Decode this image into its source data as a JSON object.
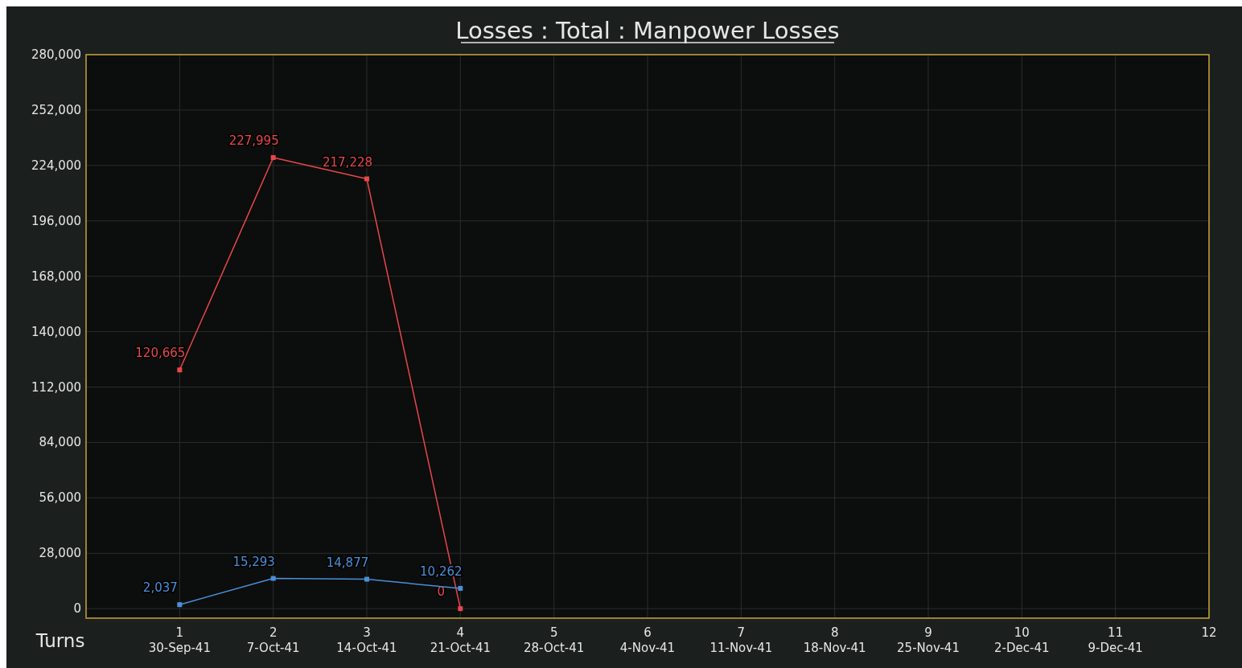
{
  "chart_data": {
    "type": "line",
    "title": "Losses : Total : Manpower Losses",
    "xlabel": "Turns",
    "x": [
      1,
      2,
      3,
      4
    ],
    "series": [
      {
        "color": "#e8474a",
        "values": [
          120665,
          227995,
          217228,
          0
        ],
        "value_labels": [
          "120,665",
          "227,995",
          "217,228",
          "0"
        ]
      },
      {
        "color": "#4a8fd8",
        "values": [
          2037,
          15293,
          14877,
          10262
        ],
        "value_labels": [
          "2,037",
          "15,293",
          "14,877",
          "10,262"
        ]
      }
    ],
    "xlim": [
      0,
      12
    ],
    "xticks": [
      1,
      2,
      3,
      4,
      5,
      6,
      7,
      8,
      9,
      10,
      11,
      12
    ],
    "x2lim": [
      "1941-09-23",
      "1941-12-16"
    ],
    "x2ticks": [
      {
        "value": "1941-09-30",
        "label": "30-Sep-41"
      },
      {
        "value": "1941-10-07",
        "label": "7-Oct-41"
      },
      {
        "value": "1941-10-14",
        "label": "14-Oct-41"
      },
      {
        "value": "1941-10-21",
        "label": "21-Oct-41"
      },
      {
        "value": "1941-10-28",
        "label": "28-Oct-41"
      },
      {
        "value": "1941-11-04",
        "label": "4-Nov-41"
      },
      {
        "value": "1941-11-11",
        "label": "11-Nov-41"
      },
      {
        "value": "1941-11-18",
        "label": "18-Nov-41"
      },
      {
        "value": "1941-11-25",
        "label": "25-Nov-41"
      },
      {
        "value": "1941-12-02",
        "label": "2-Dec-41"
      },
      {
        "value": "1941-12-09",
        "label": "9-Dec-41"
      }
    ],
    "ylim": [
      -4800,
      280000
    ],
    "yticks": [
      {
        "value": 0,
        "label": "0"
      },
      {
        "value": 28000,
        "label": "28,000"
      },
      {
        "value": 56000,
        "label": "56,000"
      },
      {
        "value": 84000,
        "label": "84,000"
      },
      {
        "value": 112000,
        "label": "112,000"
      },
      {
        "value": 140000,
        "label": "140,000"
      },
      {
        "value": 168000,
        "label": "168,000"
      },
      {
        "value": 196000,
        "label": "196,000"
      },
      {
        "value": 224000,
        "label": "224,000"
      },
      {
        "value": 252000,
        "label": "252,000"
      },
      {
        "value": 280000,
        "label": "280,000"
      }
    ],
    "grid": true,
    "marker": "square",
    "line_style": "solid"
  }
}
